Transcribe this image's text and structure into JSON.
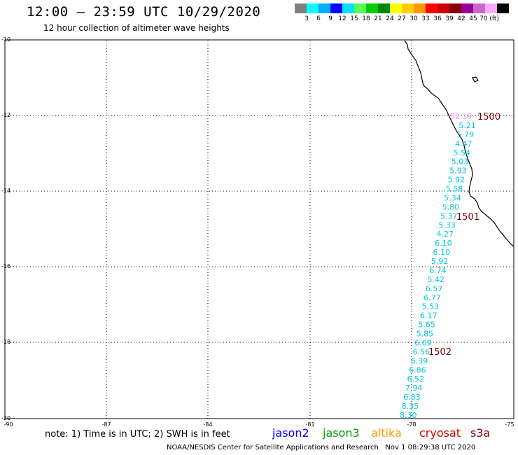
{
  "header": {
    "title": "12:00 – 23:59 UTC 10/29/2020",
    "subtitle": "12 hour collection of altimeter wave heights"
  },
  "color_scale": {
    "swatches": [
      "#808080",
      "#00ffff",
      "#00b0ff",
      "#0000ff",
      "#00e0ff",
      "#55ff55",
      "#00cc00",
      "#008800",
      "#ffff00",
      "#ffcc00",
      "#ff9900",
      "#ff0000",
      "#cc0000",
      "#880000",
      "#990099",
      "#cc66cc",
      "#ffaaff",
      "#000000"
    ],
    "labels": [
      "3",
      "6",
      "9",
      "12",
      "15",
      "18",
      "21",
      "24",
      "27",
      "30",
      "33",
      "36",
      "39",
      "42",
      "45",
      "70 (ft)"
    ]
  },
  "axes": {
    "y_labels": [
      "-10",
      "-12",
      "-14",
      "-16",
      "-18",
      "-20"
    ],
    "x_labels": [
      "-90",
      "-87",
      "-84",
      "-81",
      "-78",
      "-75"
    ]
  },
  "observations": {
    "label_color": "#00c8e0",
    "outlier_color": "#ff99ff",
    "values": [
      "52.19",
      "5.21",
      "5.79",
      "4.47",
      "5.54",
      "5.03",
      "5.93",
      "5.92",
      "5.58",
      "5.34",
      "5.80",
      "5.37",
      "5.33",
      "4.27",
      "6.10",
      "6.10",
      "5.92",
      "6.74",
      "5.42",
      "6.57",
      "6.77",
      "5.53",
      "6.17",
      "5.65",
      "5.85",
      "6.69",
      "6.56",
      "6.39",
      "6.86",
      "6.52",
      "7.94",
      "6.83",
      "8.35",
      "8.30"
    ]
  },
  "time_markers": {
    "color": "#800000",
    "labels": [
      "1500",
      "1501",
      "1502"
    ]
  },
  "footer": {
    "note": "note:  1) Time is in UTC;  2) SWH is in feet",
    "satellites": [
      {
        "name": "jason2",
        "color": "#0000ff"
      },
      {
        "name": "jason3",
        "color": "#00a000"
      },
      {
        "name": "altika",
        "color": "#ff9900"
      },
      {
        "name": "cryosat",
        "color": "#cc0000"
      },
      {
        "name": "s3a",
        "color": "#800000"
      }
    ],
    "credit": "NOAA/NESDIS Center for Satellite Applications and Research",
    "timestamp": "Nov  1 08:29:38 UTC 2020"
  }
}
